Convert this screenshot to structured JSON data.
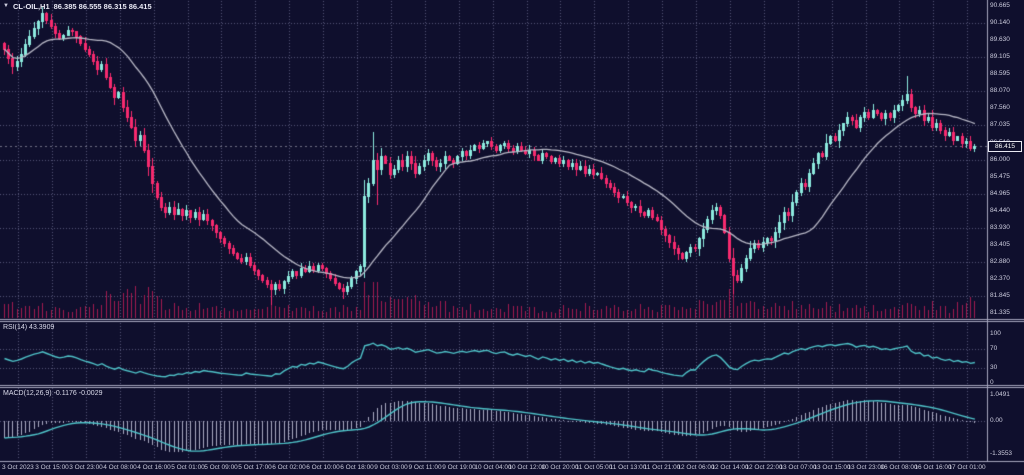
{
  "window": {
    "dropdown_icon": "▼",
    "symbol_timeframe": "CL-OIL,H1",
    "ohlc_text": "86.385 86.555 86.315 86.415"
  },
  "colors": {
    "background": "#0f0f2d",
    "bull": "#8ceade",
    "bear": "#f62a6e",
    "ma_line": "#b8b8c6",
    "volume": "#a21a4f",
    "indicator_line": "#4fc3c9",
    "histogram": "#c6c6dd",
    "grid": "#565678",
    "pane_border": "#a6a6bd",
    "axis_text": "#cdcdde",
    "bid_line": "rgba(230,230,240,0.45)"
  },
  "panes": {
    "rsi": {
      "label": "RSI(14) 43.3909",
      "axis_labels": [
        "100",
        "70",
        "30",
        "0"
      ],
      "levels": [
        70,
        30
      ]
    },
    "macd": {
      "label": "MACD(12,26,9) -0.1176 -0.0029",
      "axis_labels": [
        "1.0491",
        "0.00",
        "-1.3553"
      ]
    }
  },
  "chart_data": {
    "type": "candlestick",
    "symbol": "CL-OIL",
    "timeframe": "H1",
    "title": "CL-OIL,H1 86.385 86.555 86.315 86.415",
    "ohlc_current": {
      "open": 86.385,
      "high": 86.555,
      "low": 86.315,
      "close": 86.415
    },
    "current_price_label": "86.415",
    "y_axis_range": [
      81.18,
      90.82
    ],
    "y_ticks": [
      "90.665",
      "90.140",
      "89.630",
      "89.105",
      "88.595",
      "88.070",
      "87.560",
      "87.035",
      "86.510",
      "86.000",
      "85.475",
      "84.965",
      "84.440",
      "83.930",
      "83.405",
      "82.880",
      "82.370",
      "81.845",
      "81.335"
    ],
    "x_ticks": [
      "3 Oct 2023",
      "3 Oct 15:00",
      "3 Oct 23:00",
      "4 Oct 08:00",
      "4 Oct 16:00",
      "5 Oct 01:00",
      "5 Oct 09:00",
      "5 Oct 17:00",
      "6 Oct 02:00",
      "6 Oct 10:00",
      "6 Oct 18:00",
      "9 Oct 03:00",
      "9 Oct 11:00",
      "9 Oct 19:00",
      "10 Oct 04:00",
      "10 Oct 12:00",
      "10 Oct 20:00",
      "11 Oct 05:00",
      "11 Oct 13:00",
      "11 Oct 21:00",
      "12 Oct 06:00",
      "12 Oct 14:00",
      "12 Oct 22:00",
      "13 Oct 07:00",
      "13 Oct 15:00",
      "13 Oct 23:00",
      "16 Oct 08:00",
      "16 Oct 16:00",
      "17 Oct 01:00"
    ],
    "first_open": 89.55,
    "closes": [
      89.35,
      89.1,
      88.85,
      89.0,
      89.2,
      89.5,
      89.75,
      90.0,
      90.2,
      90.45,
      90.25,
      90.05,
      89.85,
      89.7,
      89.8,
      89.95,
      89.9,
      89.75,
      89.55,
      89.35,
      89.2,
      89.0,
      88.75,
      88.9,
      88.5,
      88.2,
      87.9,
      88.05,
      87.6,
      87.3,
      87.0,
      86.6,
      86.75,
      86.3,
      85.8,
      85.3,
      84.85,
      84.55,
      84.4,
      84.55,
      84.35,
      84.5,
      84.3,
      84.45,
      84.25,
      84.4,
      84.2,
      84.35,
      84.15,
      84.0,
      83.8,
      83.6,
      83.45,
      83.3,
      83.15,
      83.0,
      82.9,
      83.05,
      82.8,
      82.65,
      82.5,
      82.35,
      82.2,
      82.05,
      82.2,
      82.1,
      82.3,
      82.45,
      82.6,
      82.5,
      82.7,
      82.6,
      82.75,
      82.65,
      82.8,
      82.7,
      82.55,
      82.4,
      82.25,
      82.1,
      82.0,
      82.15,
      82.4,
      82.6,
      82.75,
      84.9,
      85.3,
      86.0,
      85.7,
      86.1,
      85.9,
      85.55,
      85.7,
      86.0,
      85.8,
      86.1,
      85.9,
      85.6,
      85.8,
      86.0,
      86.2,
      86.0,
      85.8,
      85.9,
      86.1,
      86.0,
      85.9,
      86.1,
      86.25,
      86.15,
      86.3,
      86.45,
      86.35,
      86.5,
      86.55,
      86.4,
      86.3,
      86.45,
      86.5,
      86.35,
      86.25,
      86.4,
      86.3,
      86.2,
      86.3,
      86.15,
      86.0,
      86.2,
      86.1,
      85.95,
      86.05,
      85.9,
      86.0,
      85.8,
      85.9,
      85.7,
      85.8,
      85.6,
      85.7,
      85.55,
      85.6,
      85.45,
      85.3,
      85.15,
      85.0,
      84.85,
      84.9,
      84.7,
      84.55,
      84.6,
      84.4,
      84.3,
      84.45,
      84.25,
      84.15,
      83.9,
      83.7,
      83.5,
      83.3,
      83.15,
      83.0,
      83.2,
      83.35,
      83.3,
      83.6,
      83.9,
      84.2,
      84.45,
      84.55,
      84.3,
      83.8,
      83.0,
      82.5,
      82.35,
      82.7,
      83.0,
      83.3,
      83.45,
      83.35,
      83.5,
      83.6,
      83.55,
      83.8,
      84.1,
      84.4,
      84.3,
      84.7,
      85.0,
      85.3,
      85.2,
      85.6,
      85.9,
      86.2,
      86.1,
      86.5,
      86.7,
      86.6,
      86.9,
      87.1,
      87.3,
      87.2,
      87.0,
      87.3,
      87.45,
      87.3,
      87.5,
      87.4,
      87.25,
      87.4,
      87.3,
      87.5,
      87.65,
      87.8,
      88.0,
      87.6,
      87.4,
      87.5,
      87.2,
      87.3,
      87.0,
      87.1,
      86.9,
      86.75,
      86.85,
      86.6,
      86.7,
      86.5,
      86.55,
      86.35,
      86.42
    ],
    "wick_overrides": {
      "9": {
        "h": 90.64
      },
      "63": {
        "l": 81.62
      },
      "80": {
        "l": 81.78
      },
      "87": {
        "h": 86.85
      },
      "88": {
        "l": 84.65
      },
      "172": {
        "l": 81.95
      },
      "213": {
        "h": 88.55
      }
    },
    "overlays": [
      {
        "name": "MA",
        "period": 21
      }
    ],
    "indicators": [
      {
        "name": "RSI",
        "period": 14,
        "current": 43.3909,
        "scale": [
          0,
          100
        ],
        "levels": [
          30,
          70
        ]
      },
      {
        "name": "MACD",
        "params": [
          12,
          26,
          9
        ],
        "current_macd": -0.1176,
        "current_signal": -0.0029,
        "scale": [
          -1.3553,
          1.0491
        ]
      }
    ],
    "has_volume": true
  }
}
